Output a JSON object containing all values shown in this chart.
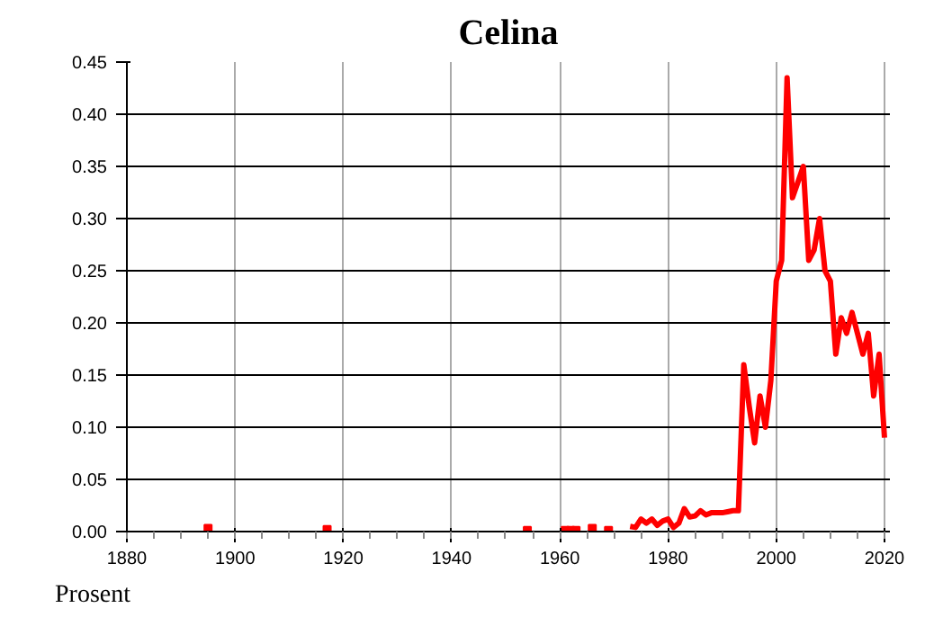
{
  "chart_data": {
    "type": "line",
    "title": "Celina",
    "annotations": [
      "Prosent"
    ],
    "series": [
      {
        "type": "scatter",
        "marker": "square",
        "color": "#ff0000",
        "x": [
          1895,
          1917,
          1954,
          1961,
          1962,
          1963,
          1966,
          1969
        ],
        "values": [
          0.003,
          0.002,
          0.001,
          0.001,
          0.001,
          0.001,
          0.003,
          0.001
        ]
      },
      {
        "color": "#ff0000",
        "x": [
          1973,
          1974,
          1975,
          1976,
          1977,
          1978,
          1979,
          1980,
          1981,
          1982,
          1983,
          1984,
          1985,
          1986,
          1987,
          1988,
          1989,
          1990,
          1991,
          1992,
          1993,
          1994,
          1995,
          1996,
          1997,
          1998,
          1999,
          2000,
          2001,
          2002,
          2003,
          2004,
          2005,
          2006,
          2007,
          2008,
          2009,
          2010,
          2011,
          2012,
          2013,
          2014,
          2015,
          2016,
          2017,
          2018,
          2019,
          2020
        ],
        "values": [
          0.005,
          0.004,
          0.012,
          0.008,
          0.012,
          0.006,
          0.01,
          0.012,
          0.004,
          0.008,
          0.022,
          0.014,
          0.015,
          0.02,
          0.016,
          0.018,
          0.018,
          0.018,
          0.019,
          0.02,
          0.02,
          0.16,
          0.12,
          0.085,
          0.13,
          0.1,
          0.145,
          0.24,
          0.26,
          0.435,
          0.32,
          0.335,
          0.35,
          0.26,
          0.27,
          0.3,
          0.25,
          0.24,
          0.17,
          0.205,
          0.19,
          0.21,
          0.19,
          0.17,
          0.19,
          0.13,
          0.17,
          0.09
        ]
      }
    ],
    "xlim": [
      1880,
      2021
    ],
    "xticks": [
      1880,
      1900,
      1920,
      1940,
      1960,
      1980,
      2000,
      2020
    ],
    "ylim": [
      0,
      0.45
    ],
    "yticks": [
      {
        "value": 0,
        "label": "0.00"
      },
      {
        "value": 0.05,
        "label": "0.05"
      },
      {
        "value": 0.1,
        "label": "0.10"
      },
      {
        "value": 0.15,
        "label": "0.15"
      },
      {
        "value": 0.2,
        "label": "0.20"
      },
      {
        "value": 0.25,
        "label": "0.25"
      },
      {
        "value": 0.3,
        "label": "0.30"
      },
      {
        "value": 0.35,
        "label": "0.35"
      },
      {
        "value": 0.4,
        "label": "0.40"
      },
      {
        "value": 0.45,
        "label": "0.45"
      }
    ],
    "grid": true,
    "marker": "none",
    "line_style": "solid"
  }
}
